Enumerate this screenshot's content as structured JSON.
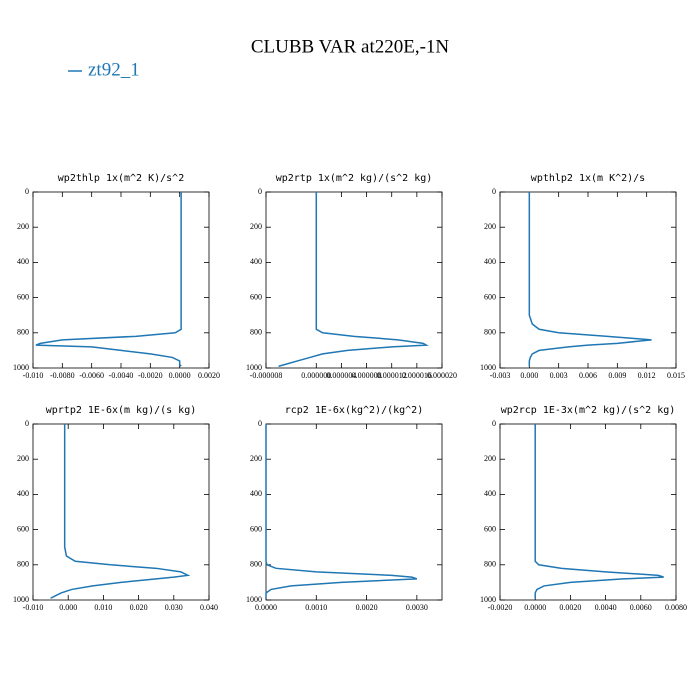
{
  "title": "CLUBB VAR at220E,-1N",
  "legend": {
    "name": "zt92_1",
    "color": "#1f77b4"
  },
  "chart_data": [
    {
      "type": "line",
      "title": "wp2thlp  1x(m^2 K)/s^2",
      "xlim": [
        -0.01,
        0.002
      ],
      "xticks": [
        {
          "value": -0.01,
          "label": "-0.010"
        },
        {
          "value": -0.008,
          "label": "-0.0080"
        },
        {
          "value": -0.006,
          "label": "-0.0060"
        },
        {
          "value": -0.004,
          "label": "-0.0040"
        },
        {
          "value": -0.002,
          "label": "-0.0020"
        },
        {
          "value": 0,
          "label": "0.0000"
        },
        {
          "value": 0.002,
          "label": "0.0020"
        }
      ],
      "ylim": [
        1000,
        0
      ],
      "yticks": [
        0,
        200,
        400,
        600,
        800,
        1000
      ],
      "y": [
        0,
        200,
        400,
        600,
        700,
        750,
        780,
        800,
        820,
        840,
        860,
        870,
        880,
        900,
        920,
        940,
        960,
        980,
        990
      ],
      "series": [
        {
          "color": "#1f77b4",
          "values": [
            0.0001,
            0.0001,
            0.0001,
            0.0001,
            0.0001,
            0.0001,
            0.0001,
            -0.0003,
            -0.003,
            -0.008,
            -0.0095,
            -0.0098,
            -0.006,
            -0.004,
            -0.002,
            -0.0005,
            0,
            0,
            0.0001
          ]
        }
      ]
    },
    {
      "type": "line",
      "title": "wp2rtp  1x(m^2 kg)/(s^2 kg)",
      "xlim": [
        -8e-06,
        2e-05
      ],
      "xticks": [
        {
          "value": -8e-06,
          "label": "-0.000008"
        },
        {
          "value": 0,
          "label": "0.000000"
        },
        {
          "value": 4e-06,
          "label": "0.000004"
        },
        {
          "value": 8e-06,
          "label": "0.000008"
        },
        {
          "value": 1.2e-05,
          "label": "0.000012"
        },
        {
          "value": 1.6e-05,
          "label": "0.000016"
        },
        {
          "value": 2e-05,
          "label": "0.000020"
        }
      ],
      "ylim": [
        1000,
        0
      ],
      "yticks": [
        0,
        200,
        400,
        600,
        800,
        1000
      ],
      "y": [
        0,
        200,
        400,
        600,
        700,
        750,
        780,
        800,
        820,
        840,
        860,
        870,
        880,
        900,
        920,
        940,
        960,
        980,
        990
      ],
      "series": [
        {
          "color": "#1f77b4",
          "values": [
            0,
            0,
            0,
            0,
            0,
            0,
            0,
            1e-06,
            6e-06,
            1.3e-05,
            1.7e-05,
            1.75e-05,
            1.2e-05,
            5e-06,
            1e-06,
            -1e-06,
            -3e-06,
            -5e-06,
            -6e-06
          ]
        }
      ]
    },
    {
      "type": "line",
      "title": "wpthlp2  1x(m K^2)/s",
      "xlim": [
        -0.003,
        0.015
      ],
      "xticks": [
        {
          "value": -0.003,
          "label": "-0.003"
        },
        {
          "value": 0,
          "label": "0.000"
        },
        {
          "value": 0.003,
          "label": "0.003"
        },
        {
          "value": 0.006,
          "label": "0.006"
        },
        {
          "value": 0.009,
          "label": "0.009"
        },
        {
          "value": 0.012,
          "label": "0.012"
        },
        {
          "value": 0.015,
          "label": "0.015"
        }
      ],
      "ylim": [
        1000,
        0
      ],
      "yticks": [
        0,
        200,
        400,
        600,
        800,
        1000
      ],
      "y": [
        0,
        200,
        400,
        600,
        700,
        750,
        780,
        800,
        820,
        840,
        860,
        870,
        880,
        900,
        920,
        940,
        960,
        980,
        990
      ],
      "series": [
        {
          "color": "#1f77b4",
          "values": [
            0,
            0,
            0,
            0,
            0,
            0.0003,
            0.001,
            0.003,
            0.008,
            0.0125,
            0.009,
            0.006,
            0.004,
            0.001,
            0.0003,
            0.0001,
            0,
            0,
            0
          ]
        }
      ]
    },
    {
      "type": "line",
      "title": "wprtp2  1E-6x(m kg)/(s kg)",
      "xlim": [
        -0.01,
        0.04
      ],
      "xticks": [
        {
          "value": -0.01,
          "label": "-0.010"
        },
        {
          "value": 0,
          "label": "0.000"
        },
        {
          "value": 0.01,
          "label": "0.010"
        },
        {
          "value": 0.02,
          "label": "0.020"
        },
        {
          "value": 0.03,
          "label": "0.030"
        },
        {
          "value": 0.04,
          "label": "0.040"
        }
      ],
      "ylim": [
        1000,
        0
      ],
      "yticks": [
        0,
        200,
        400,
        600,
        800,
        1000
      ],
      "y": [
        0,
        200,
        400,
        600,
        700,
        750,
        780,
        800,
        820,
        840,
        860,
        870,
        880,
        900,
        920,
        940,
        960,
        980,
        990
      ],
      "series": [
        {
          "color": "#1f77b4",
          "values": [
            -0.001,
            -0.001,
            -0.001,
            -0.001,
            -0.001,
            -0.0005,
            0.002,
            0.012,
            0.025,
            0.032,
            0.034,
            0.03,
            0.025,
            0.015,
            0.007,
            0.001,
            -0.002,
            -0.004,
            -0.005
          ]
        }
      ]
    },
    {
      "type": "line",
      "title": "rcp2  1E-6x(kg^2)/(kg^2)",
      "xlim": [
        0,
        0.0035
      ],
      "xticks": [
        {
          "value": 0,
          "label": "0.0000"
        },
        {
          "value": 0.001,
          "label": "0.0010"
        },
        {
          "value": 0.002,
          "label": "0.0020"
        },
        {
          "value": 0.003,
          "label": "0.0030"
        }
      ],
      "ylim": [
        1000,
        0
      ],
      "yticks": [
        0,
        200,
        400,
        600,
        800,
        1000
      ],
      "y": [
        0,
        200,
        400,
        600,
        700,
        750,
        780,
        800,
        820,
        840,
        860,
        870,
        880,
        900,
        920,
        940,
        960,
        980,
        990
      ],
      "series": [
        {
          "color": "#1f77b4",
          "values": [
            0,
            0,
            0,
            0,
            0,
            0,
            0,
            2e-05,
            0.0002,
            0.001,
            0.0025,
            0.0029,
            0.003,
            0.0015,
            0.0005,
            0.0001,
            0,
            0,
            0
          ]
        }
      ]
    },
    {
      "type": "line",
      "title": "wp2rcp  1E-3x(m^2 kg)/(s^2 kg)",
      "xlim": [
        -0.002,
        0.008
      ],
      "xticks": [
        {
          "value": -0.002,
          "label": "-0.0020"
        },
        {
          "value": 0,
          "label": "0.0000"
        },
        {
          "value": 0.002,
          "label": "0.0020"
        },
        {
          "value": 0.004,
          "label": "0.0040"
        },
        {
          "value": 0.006,
          "label": "0.0060"
        },
        {
          "value": 0.008,
          "label": "0.0080"
        }
      ],
      "ylim": [
        1000,
        0
      ],
      "yticks": [
        0,
        200,
        400,
        600,
        800,
        1000
      ],
      "y": [
        0,
        200,
        400,
        600,
        700,
        750,
        780,
        800,
        820,
        840,
        860,
        870,
        880,
        900,
        920,
        940,
        960,
        980,
        990
      ],
      "series": [
        {
          "color": "#1f77b4",
          "values": [
            0,
            0,
            0,
            0,
            0,
            0,
            0,
            0.0002,
            0.0015,
            0.004,
            0.007,
            0.0073,
            0.005,
            0.002,
            0.0005,
            0.0001,
            0,
            0,
            0
          ]
        }
      ]
    }
  ]
}
